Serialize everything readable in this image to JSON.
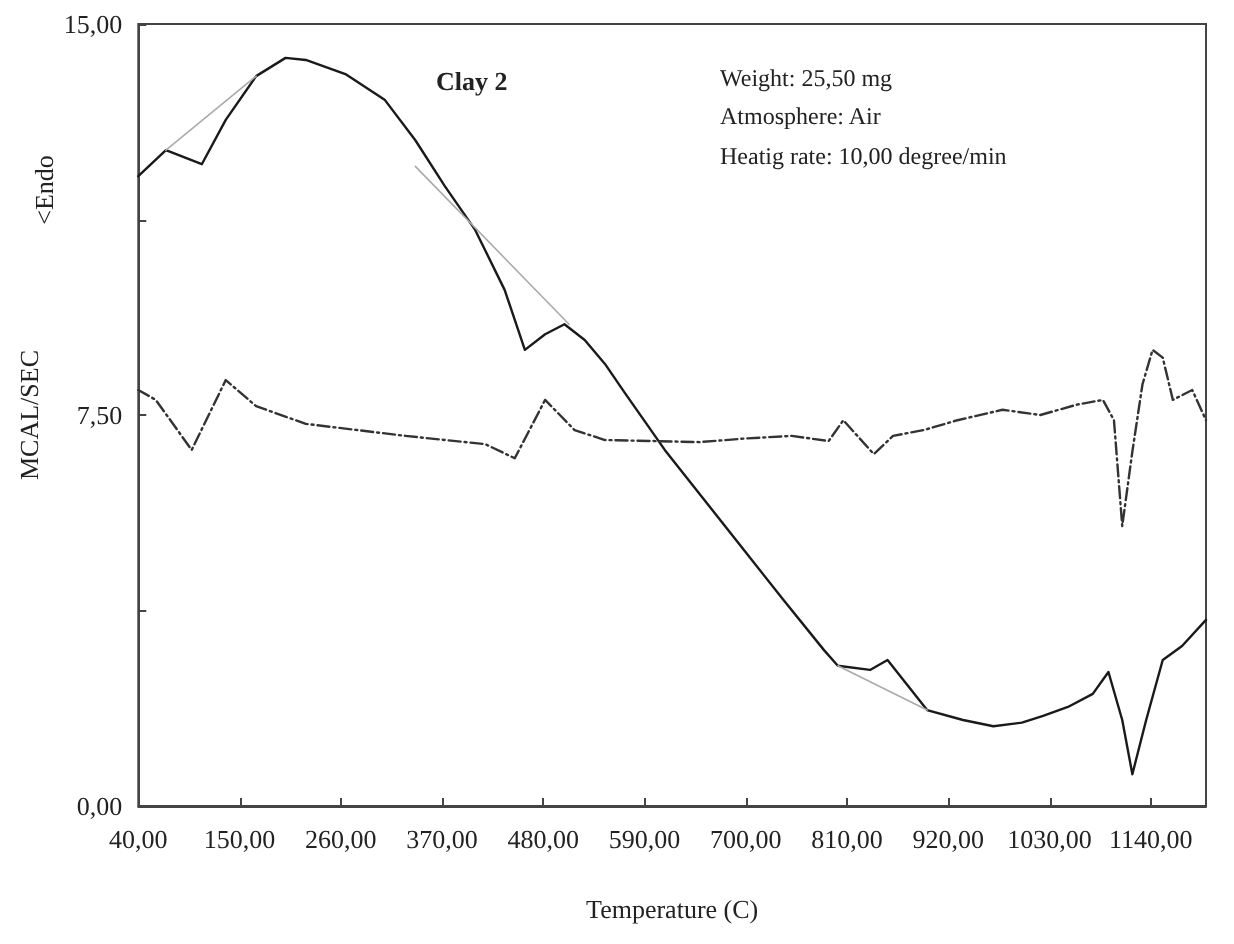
{
  "chart_data": {
    "type": "line",
    "xlabel": "Temperature (C)",
    "ylabel": "MCAL/SEC",
    "annotations": [
      "<Endo",
      "Clay 2",
      "Weight: 25,50 mg",
      "Atmosphere: Air",
      "Heatig rate: 10,00 degree/min"
    ],
    "xlim": [
      40,
      1200
    ],
    "ylim": [
      0,
      15
    ],
    "xticks": [
      {
        "value": 40,
        "label": "40,00"
      },
      {
        "value": 150,
        "label": "150,00"
      },
      {
        "value": 260,
        "label": "260,00"
      },
      {
        "value": 370,
        "label": "370,00"
      },
      {
        "value": 480,
        "label": "480,00"
      },
      {
        "value": 590,
        "label": "590,00"
      },
      {
        "value": 700,
        "label": "700,00"
      },
      {
        "value": 810,
        "label": "810,00"
      },
      {
        "value": 920,
        "label": "920,00"
      },
      {
        "value": 1030,
        "label": "1030,00"
      },
      {
        "value": 1140,
        "label": "1140,00"
      }
    ],
    "yticks": [
      {
        "value": 0,
        "label": "0,00"
      },
      {
        "value": 3.75,
        "label": null
      },
      {
        "value": 7.5,
        "label": "7,50"
      },
      {
        "value": 11.25,
        "label": null
      },
      {
        "value": 15,
        "label": "15,00"
      }
    ],
    "grid": false,
    "marker": "none",
    "series": [
      {
        "color": "#1a1a1a",
        "line_style": "solid",
        "x": [
          40,
          70,
          109,
          135,
          168,
          200,
          222,
          265,
          308,
          341,
          373,
          406,
          438,
          460,
          482,
          503,
          525,
          547,
          568,
          612,
          655,
          698,
          741,
          785,
          800,
          835,
          854,
          897,
          936,
          969,
          1000,
          1023,
          1050,
          1077,
          1094,
          1109,
          1120,
          1135,
          1153,
          1174,
          1200
        ],
        "values": [
          12.08,
          12.58,
          12.31,
          13.16,
          14.0,
          14.35,
          14.31,
          14.04,
          13.54,
          12.77,
          11.89,
          11.05,
          9.9,
          8.75,
          9.05,
          9.24,
          8.94,
          8.48,
          7.94,
          6.83,
          5.87,
          4.91,
          3.95,
          2.99,
          2.69,
          2.61,
          2.8,
          1.84,
          1.65,
          1.53,
          1.6,
          1.73,
          1.9,
          2.15,
          2.57,
          1.65,
          0.61,
          1.65,
          2.8,
          3.07,
          3.57
        ]
      },
      {
        "color": "#333333",
        "line_style": "dashed",
        "x": [
          40,
          59,
          98,
          135,
          168,
          222,
          330,
          417,
          449,
          482,
          514,
          547,
          600,
          650,
          700,
          750,
          790,
          806,
          839,
          860,
          893,
          930,
          979,
          1020,
          1060,
          1088,
          1100,
          1109,
          1120,
          1131,
          1142,
          1153,
          1164,
          1185,
          1200
        ],
        "values": [
          7.98,
          7.79,
          6.83,
          8.17,
          7.67,
          7.33,
          7.1,
          6.94,
          6.67,
          7.79,
          7.21,
          7.02,
          7.0,
          6.98,
          7.05,
          7.1,
          7.0,
          7.4,
          6.75,
          7.1,
          7.21,
          7.4,
          7.6,
          7.5,
          7.7,
          7.79,
          7.4,
          5.37,
          6.8,
          8.09,
          8.75,
          8.6,
          7.79,
          7.98,
          7.4
        ]
      },
      {
        "color": "#aaaaaa",
        "line_style": "solid",
        "x": [
          70,
          168,
          200,
          341,
          508,
          600,
          800,
          897
        ],
        "values": [
          12.58,
          14.0,
          null,
          12.27,
          9.24,
          null,
          2.69,
          1.84
        ]
      }
    ]
  }
}
